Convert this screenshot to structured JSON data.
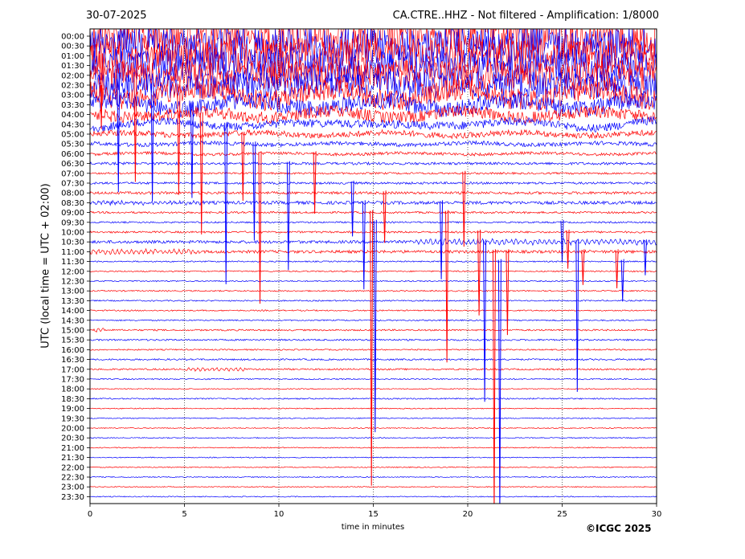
{
  "header": {
    "date": "30-07-2025",
    "title": "CA.CTRE..HHZ - Not filtered - Amplification: 1/8000"
  },
  "footer": {
    "copyright": "©ICGC 2025"
  },
  "colors": {
    "trace_a": "#ff0000",
    "trace_b": "#0000ff",
    "axis": "#000000",
    "grid": "#000000"
  },
  "chart_data": {
    "type": "line",
    "title": "CA.CTRE..HHZ - Not filtered - Amplification: 1/8000",
    "date": "30-07-2025",
    "xlabel": "time in minutes",
    "ylabel": "UTC (local time = UTC + 02:00)",
    "xlim": [
      0,
      30
    ],
    "x_ticks": [
      0,
      5,
      10,
      15,
      20,
      25,
      30
    ],
    "x_tick_labels": [
      "0",
      "5",
      "10",
      "15",
      "20",
      "25",
      "30"
    ],
    "vertical_grid_minutes": [
      5,
      10,
      15,
      20,
      25
    ],
    "grid": true,
    "row_labels": [
      "00:00",
      "00:30",
      "01:00",
      "01:30",
      "02:00",
      "02:30",
      "03:00",
      "03:30",
      "04:00",
      "04:30",
      "05:00",
      "05:30",
      "06:00",
      "06:30",
      "07:00",
      "07:30",
      "08:00",
      "08:30",
      "09:00",
      "09:30",
      "10:00",
      "10:30",
      "11:00",
      "11:30",
      "12:00",
      "12:30",
      "13:00",
      "13:30",
      "14:00",
      "14:30",
      "15:00",
      "15:30",
      "16:00",
      "16:30",
      "17:00",
      "17:30",
      "18:00",
      "18:30",
      "19:00",
      "19:30",
      "20:00",
      "20:30",
      "21:00",
      "21:30",
      "22:00",
      "22:30",
      "23:00",
      "23:30"
    ],
    "row_colors": "alternating red (even rows) / blue (odd rows)",
    "row_activity": [
      6.0,
      5.8,
      5.5,
      5.2,
      4.8,
      4.2,
      3.4,
      2.6,
      1.9,
      1.3,
      0.9,
      0.6,
      0.45,
      0.4,
      0.3,
      0.35,
      0.4,
      0.5,
      0.3,
      0.25,
      0.3,
      0.45,
      0.45,
      0.2,
      0.2,
      0.2,
      0.2,
      0.2,
      0.2,
      0.2,
      0.25,
      0.25,
      0.2,
      0.25,
      0.25,
      0.2,
      0.15,
      0.2,
      0.15,
      0.15,
      0.15,
      0.15,
      0.15,
      0.15,
      0.15,
      0.15,
      0.15,
      0.15
    ],
    "spikes": [
      {
        "row": 2,
        "minute": 0.6,
        "depth": 2.2
      },
      {
        "row": 3,
        "minute": 1.5,
        "depth": 3.8
      },
      {
        "row": 4,
        "minute": 2.4,
        "depth": 3.2
      },
      {
        "row": 5,
        "minute": 3.3,
        "depth": 3.5
      },
      {
        "row": 6,
        "minute": 4.7,
        "depth": 3.0
      },
      {
        "row": 7,
        "minute": 5.4,
        "depth": 2.8
      },
      {
        "row": 8,
        "minute": 5.9,
        "depth": 3.6
      },
      {
        "row": 9,
        "minute": 7.2,
        "depth": 4.8
      },
      {
        "row": 10,
        "minute": 8.1,
        "depth": 2.0
      },
      {
        "row": 11,
        "minute": 8.7,
        "depth": 2.9
      },
      {
        "row": 12,
        "minute": 9.0,
        "depth": 4.5
      },
      {
        "row": 13,
        "minute": 10.5,
        "depth": 3.2
      },
      {
        "row": 12,
        "minute": 11.9,
        "depth": 1.8
      },
      {
        "row": 15,
        "minute": 13.9,
        "depth": 1.6
      },
      {
        "row": 17,
        "minute": 14.5,
        "depth": 2.6
      },
      {
        "row": 18,
        "minute": 14.9,
        "depth": 8.2
      },
      {
        "row": 19,
        "minute": 15.1,
        "depth": 6.3
      },
      {
        "row": 16,
        "minute": 15.6,
        "depth": 1.5
      },
      {
        "row": 17,
        "minute": 18.6,
        "depth": 2.3
      },
      {
        "row": 18,
        "minute": 18.9,
        "depth": 4.5
      },
      {
        "row": 14,
        "minute": 19.8,
        "depth": 2.2
      },
      {
        "row": 20,
        "minute": 20.6,
        "depth": 2.5
      },
      {
        "row": 21,
        "minute": 20.9,
        "depth": 4.8
      },
      {
        "row": 22,
        "minute": 21.4,
        "depth": 8.0
      },
      {
        "row": 23,
        "minute": 21.7,
        "depth": 7.6
      },
      {
        "row": 22,
        "minute": 22.1,
        "depth": 2.5
      },
      {
        "row": 19,
        "minute": 25.0,
        "depth": 1.2
      },
      {
        "row": 20,
        "minute": 25.3,
        "depth": 1.1
      },
      {
        "row": 21,
        "minute": 25.8,
        "depth": 4.5
      },
      {
        "row": 22,
        "minute": 26.1,
        "depth": 1.0
      },
      {
        "row": 22,
        "minute": 27.9,
        "depth": 1.1
      },
      {
        "row": 23,
        "minute": 28.2,
        "depth": 1.2
      },
      {
        "row": 21,
        "minute": 29.4,
        "depth": 1.0
      }
    ],
    "wave_bursts": [
      {
        "row": 21,
        "from": 17.0,
        "to": 30.0,
        "amp": 0.9
      },
      {
        "row": 22,
        "from": 0.0,
        "to": 6.0,
        "amp": 0.7
      },
      {
        "row": 17,
        "from": 0.0,
        "to": 6.0,
        "amp": 0.5
      },
      {
        "row": 30,
        "from": 0.2,
        "to": 0.8,
        "amp": 0.8
      },
      {
        "row": 34,
        "from": 5.0,
        "to": 8.2,
        "amp": 0.6
      }
    ]
  }
}
